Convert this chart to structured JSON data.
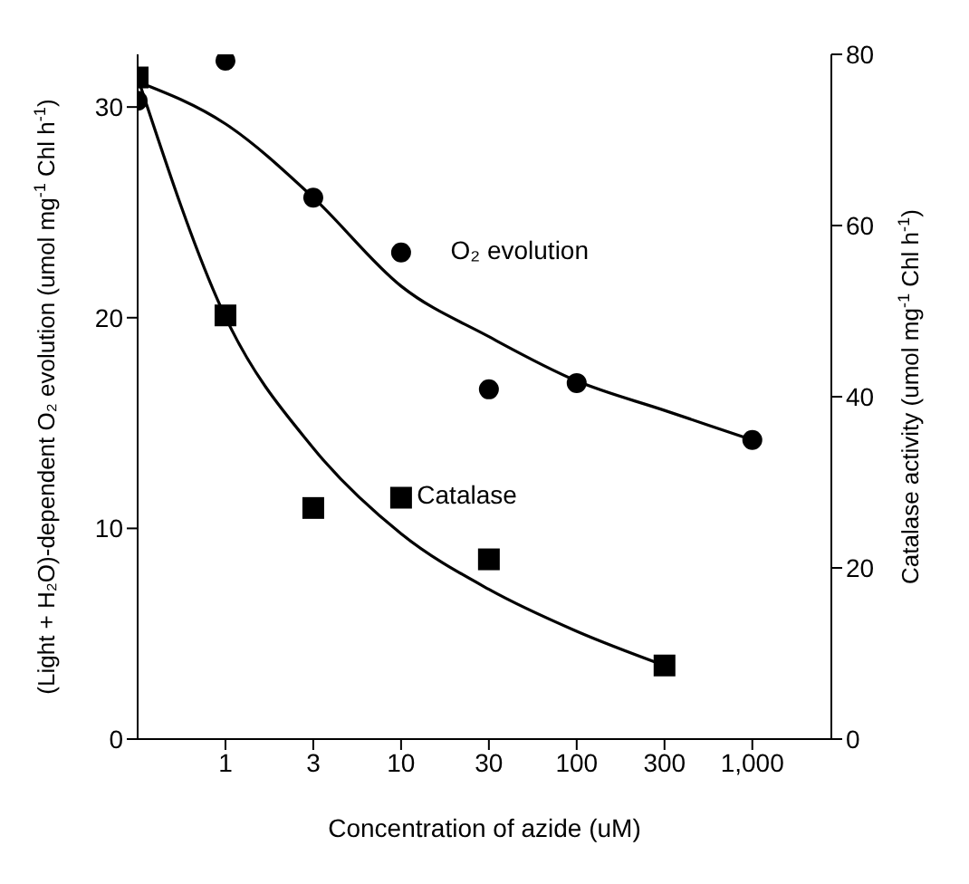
{
  "chart_data": {
    "type": "scatter",
    "xlabel": "Concentration of azide (uM)",
    "ylabel": "(Light + H₂O)-dependent O₂ evolution (umol mg$^{-1}$ Chl h$^{-1}$)",
    "y2label": "Catalase activity (umol mg$^{-1}$ Chl h$^{-1}$)",
    "categories": [
      null,
      "1",
      "3",
      "10",
      "30",
      "100",
      "300",
      "1,000"
    ],
    "series": [
      {
        "marker": "circle",
        "color": "#000000",
        "values": [
          30.3,
          32.2,
          25.7,
          23.1,
          16.6,
          16.9,
          null,
          14.2
        ]
      },
      {
        "type": "line",
        "marker": "none",
        "color": "#000000",
        "values": [
          31.2,
          29.2,
          25.7,
          21.5,
          19.1,
          17,
          15.6,
          14.2
        ]
      },
      {
        "marker": "square",
        "axis": "y2",
        "color": "#000000",
        "values": [
          77.3,
          49.5,
          27,
          28.2,
          21,
          null,
          8.6,
          null
        ]
      },
      {
        "type": "line",
        "marker": "none",
        "axis": "y2",
        "color": "#000000",
        "values": [
          77.3,
          49.3,
          34,
          24,
          17.5,
          12.6,
          8.6,
          null
        ]
      }
    ],
    "ylim": [
      0,
      32.5
    ],
    "yticks": [
      0,
      10,
      20,
      30
    ],
    "y2lim": [
      0,
      80
    ],
    "y2ticks": [
      0,
      20,
      40,
      60,
      80
    ],
    "annotations": [
      "O₂ evolution",
      "Catalase"
    ]
  }
}
